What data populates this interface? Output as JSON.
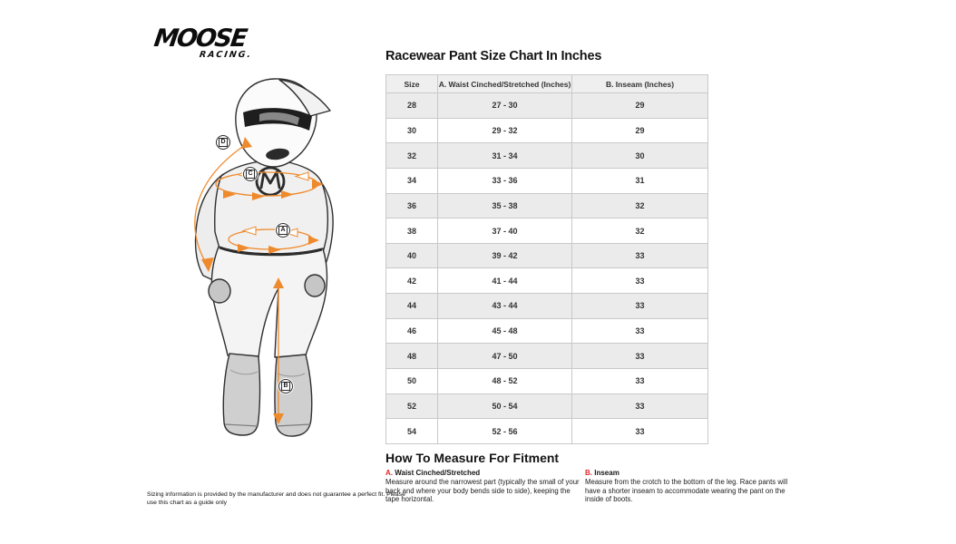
{
  "logo": {
    "line1": "MOOSE",
    "line2": "RACING."
  },
  "table": {
    "title": "Racewear Pant Size Chart In Inches",
    "columns": [
      "Size",
      "A. Waist Cinched/Stretched (Inches)",
      "B. Inseam (Inches)"
    ],
    "rows": [
      [
        "28",
        "27 - 30",
        "29"
      ],
      [
        "30",
        "29 - 32",
        "29"
      ],
      [
        "32",
        "31 - 34",
        "30"
      ],
      [
        "34",
        "33 - 36",
        "31"
      ],
      [
        "36",
        "35 - 38",
        "32"
      ],
      [
        "38",
        "37 - 40",
        "32"
      ],
      [
        "40",
        "39 - 42",
        "33"
      ],
      [
        "42",
        "41 - 44",
        "33"
      ],
      [
        "44",
        "43 - 44",
        "33"
      ],
      [
        "46",
        "45 - 48",
        "33"
      ],
      [
        "48",
        "47 - 50",
        "33"
      ],
      [
        "50",
        "48 - 52",
        "33"
      ],
      [
        "52",
        "50 - 54",
        "33"
      ],
      [
        "54",
        "52 - 56",
        "33"
      ]
    ]
  },
  "how_to": {
    "title": "How To Measure For Fitment",
    "sections": [
      {
        "letter": "A.",
        "heading": "Waist Cinched/Stretched",
        "body": "Measure around the narrowest part (typically the small of your back and where your body bends side to side), keeping the tape horizontal."
      },
      {
        "letter": "B.",
        "heading": "Inseam",
        "body": "Measure from the crotch to the bottom of the leg. Race pants will have a shorter inseam to accommodate wearing the pant on the inside of boots."
      }
    ]
  },
  "disclaimer": "Sizing information is provided by the manufacturer and does not guarantee a perfect fit. Please use this chart as a guide only",
  "figure": {
    "markers": [
      "D",
      "C",
      "A",
      "B"
    ]
  },
  "colors": {
    "accent_orange": "#EF8A2C",
    "accent_red": "#E4252B",
    "row_alt": "#EBEBEB",
    "header_bg": "#EFEFEF",
    "border": "#C9C9C9"
  }
}
